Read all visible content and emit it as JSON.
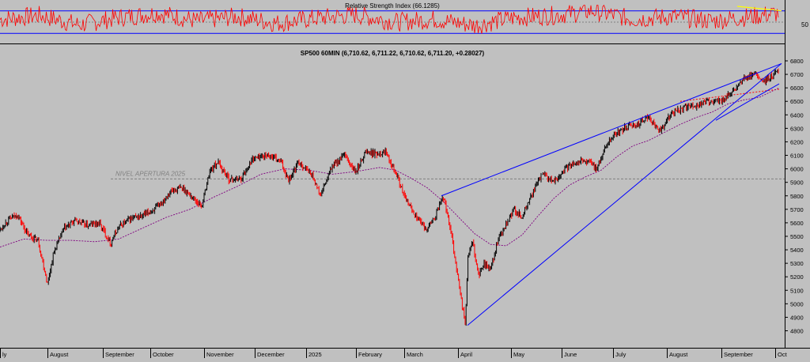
{
  "chart_data": [
    {
      "type": "line",
      "title": "Relative Strength Index (66.1285)",
      "ylim": [
        15,
        85
      ],
      "yticks": [
        50
      ],
      "bands": [
        70,
        30
      ],
      "colors": {
        "line": "#ff0000",
        "band": "#0000ff",
        "mid": "#808080",
        "trend": "#ffff00"
      },
      "series": [
        {
          "x": [
            0,
            50,
            100,
            150,
            200,
            250,
            300,
            350,
            400,
            450,
            500,
            550,
            600,
            650,
            700,
            750,
            800,
            850,
            900,
            950,
            985
          ],
          "values": [
            55,
            62,
            45,
            58,
            66,
            52,
            60,
            48,
            57,
            63,
            50,
            55,
            44,
            58,
            62,
            70,
            55,
            60,
            52,
            60,
            66
          ]
        }
      ],
      "trendline": {
        "x": [
          932,
          988
        ],
        "values": [
          78,
          70
        ]
      }
    },
    {
      "type": "line",
      "title": "SP500 60MIN (6,710.62, 6,711.22, 6,710.62, 6,711.20, +0.28027)",
      "ylim": [
        4720,
        6820
      ],
      "yticks": [
        4800,
        4900,
        5000,
        5100,
        5200,
        5300,
        5400,
        5500,
        5600,
        5700,
        5800,
        5900,
        6000,
        6100,
        6200,
        6300,
        6400,
        6500,
        6600,
        6700,
        6800
      ],
      "x_range": [
        0,
        990
      ],
      "categories": [
        "ly",
        "August",
        "September",
        "October",
        "November",
        "December",
        "2025",
        "February",
        "March",
        "April",
        "May",
        "June",
        "July",
        "August",
        "September",
        "Oct"
      ],
      "category_x": [
        0,
        60,
        130,
        190,
        258,
        322,
        387,
        450,
        511,
        579,
        646,
        710,
        775,
        843,
        912,
        980
      ],
      "annotation": {
        "text": "NIVEL APERTURA 2025",
        "y": 5925
      },
      "colors": {
        "price": "#000000",
        "price_down": "#ff0000",
        "ma": "#800080",
        "trend": "#0000ff",
        "level": "#808080",
        "ref": "#ff0000"
      },
      "series": [
        {
          "name": "price",
          "x": [
            0,
            10,
            22,
            35,
            48,
            60,
            68,
            80,
            95,
            110,
            125,
            140,
            150,
            165,
            180,
            200,
            215,
            230,
            245,
            255,
            265,
            275,
            290,
            305,
            320,
            340,
            355,
            365,
            378,
            395,
            405,
            420,
            435,
            450,
            462,
            475,
            488,
            500,
            512,
            525,
            538,
            550,
            560,
            570,
            580,
            588,
            592,
            598,
            605,
            612,
            620,
            630,
            640,
            650,
            660,
            670,
            685,
            700,
            715,
            730,
            745,
            755,
            765,
            775,
            790,
            805,
            820,
            835,
            850,
            865,
            880,
            895,
            910,
            925,
            940,
            955,
            965,
            975,
            982
          ],
          "values": [
            5550,
            5620,
            5660,
            5510,
            5470,
            5150,
            5380,
            5550,
            5620,
            5580,
            5600,
            5450,
            5570,
            5630,
            5650,
            5720,
            5830,
            5860,
            5780,
            5720,
            5980,
            6050,
            5920,
            5930,
            6080,
            6100,
            6050,
            5920,
            6050,
            5950,
            5800,
            6020,
            6100,
            5970,
            6130,
            6110,
            6130,
            5980,
            5780,
            5660,
            5550,
            5640,
            5800,
            5550,
            5150,
            4850,
            5380,
            5450,
            5200,
            5300,
            5250,
            5480,
            5580,
            5700,
            5640,
            5780,
            5960,
            5900,
            6000,
            6060,
            6050,
            6000,
            6160,
            6250,
            6300,
            6330,
            6380,
            6280,
            6420,
            6450,
            6470,
            6500,
            6500,
            6560,
            6660,
            6700,
            6640,
            6680,
            6720
          ]
        },
        {
          "name": "moving average",
          "x": [
            0,
            30,
            60,
            90,
            120,
            150,
            180,
            210,
            240,
            270,
            300,
            330,
            360,
            390,
            420,
            450,
            480,
            500,
            520,
            540,
            560,
            580,
            600,
            620,
            640,
            660,
            680,
            700,
            720,
            740,
            760,
            780,
            800,
            820,
            840,
            860,
            880,
            900,
            920,
            940,
            960,
            985
          ],
          "values": [
            5420,
            5480,
            5470,
            5470,
            5460,
            5480,
            5560,
            5640,
            5700,
            5790,
            5870,
            5960,
            6000,
            5990,
            5960,
            5980,
            6010,
            5990,
            5930,
            5860,
            5760,
            5640,
            5520,
            5440,
            5430,
            5510,
            5650,
            5780,
            5880,
            5940,
            5990,
            6090,
            6170,
            6210,
            6270,
            6330,
            6380,
            6420,
            6480,
            6510,
            6530,
            6600
          ]
        }
      ],
      "trendlines": [
        {
          "x": [
            558,
            988
          ],
          "values": [
            5800,
            6780
          ]
        },
        {
          "x": [
            591,
            988
          ],
          "values": [
            4840,
            6780
          ]
        },
        {
          "x": [
            905,
            985
          ],
          "values": [
            6360,
            6630
          ]
        }
      ],
      "reference_line": {
        "x": [
          860,
          985
        ],
        "values": [
          6500,
          6590
        ]
      }
    }
  ]
}
